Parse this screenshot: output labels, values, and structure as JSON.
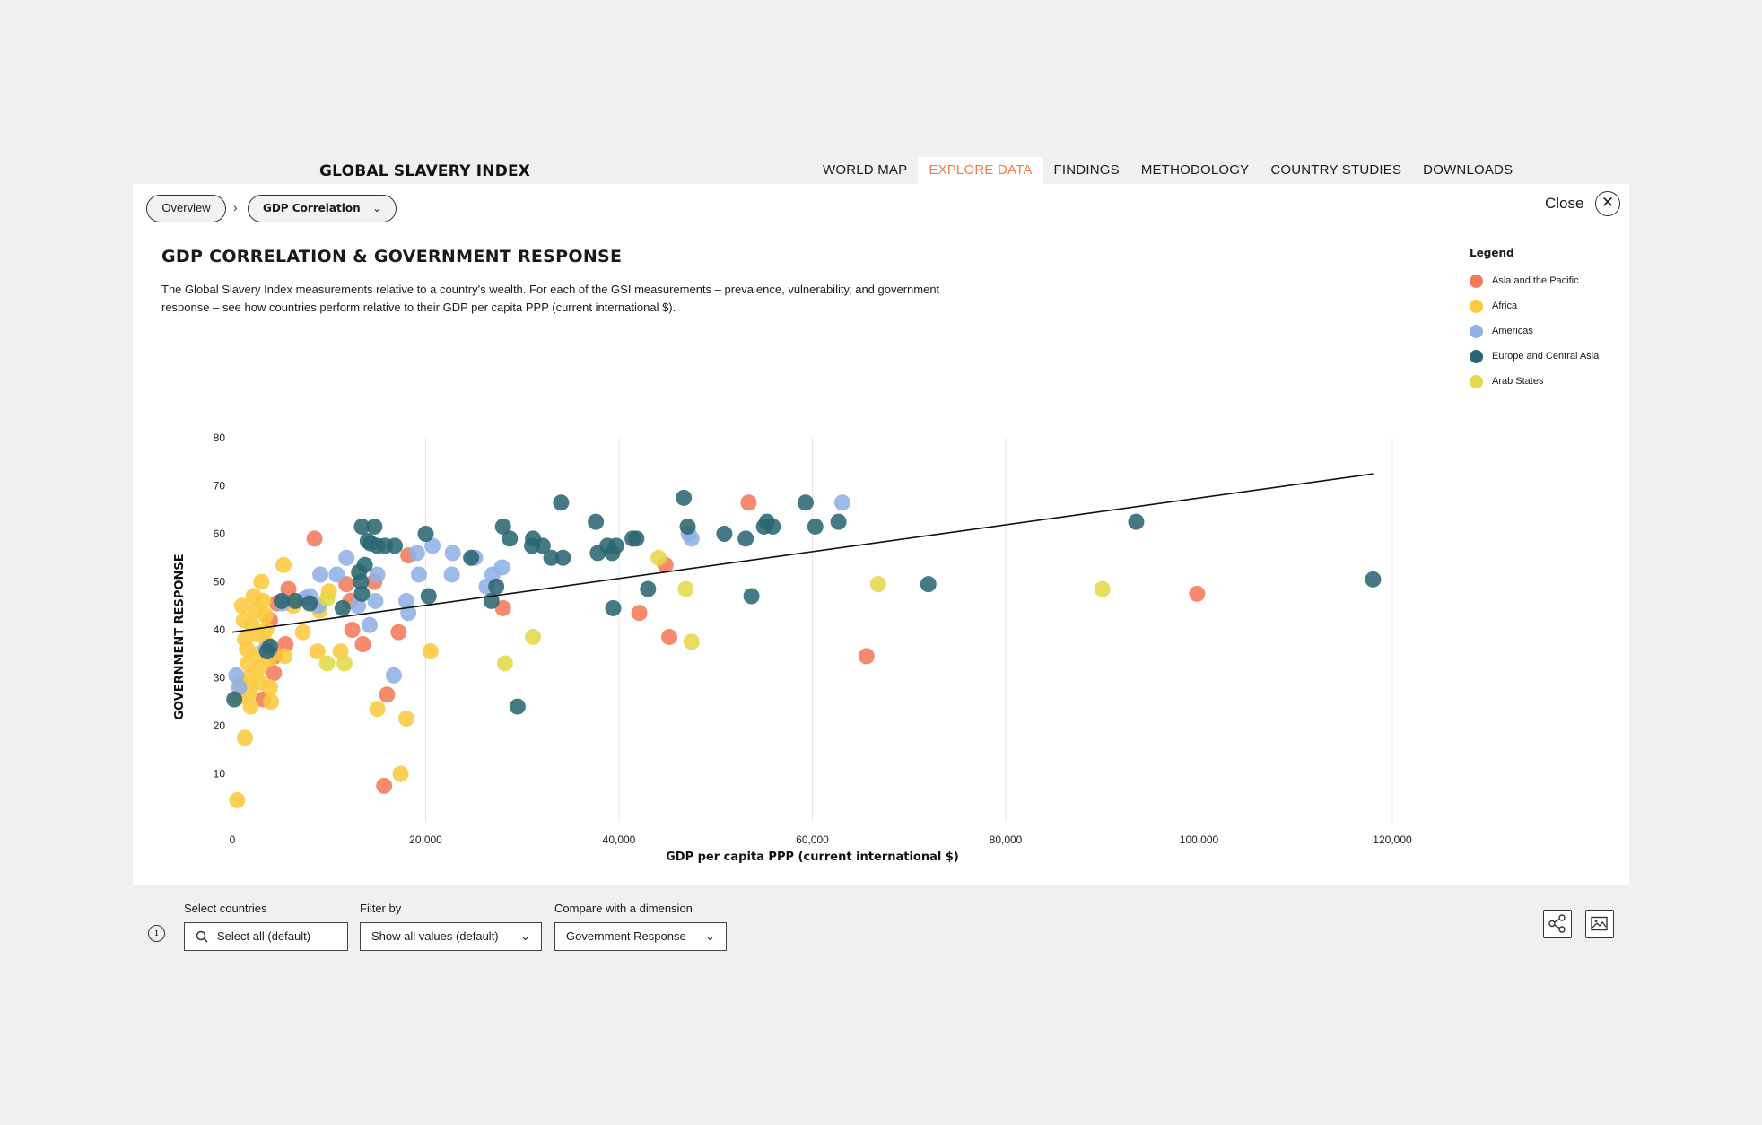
{
  "brand": "GLOBAL SLAVERY INDEX",
  "nav": [
    {
      "label": "WORLD MAP",
      "active": false
    },
    {
      "label": "EXPLORE DATA",
      "active": true
    },
    {
      "label": "FINDINGS",
      "active": false
    },
    {
      "label": "METHODOLOGY",
      "active": false
    },
    {
      "label": "COUNTRY STUDIES",
      "active": false
    },
    {
      "label": "DOWNLOADS",
      "active": false
    }
  ],
  "breadcrumb": {
    "overview": "Overview",
    "separator": "›",
    "current": "GDP Correlation"
  },
  "close_label": "Close",
  "title": "GDP CORRELATION & GOVERNMENT RESPONSE",
  "description": "The Global Slavery Index measurements relative to a country's wealth. For each of the GSI measurements – prevalence, vulnerability, and government response – see how countries perform relative to their GDP per capita PPP (current international $).",
  "legend": {
    "title": "Legend",
    "items": [
      {
        "label": "Asia and the Pacific",
        "color": "#f47a5b"
      },
      {
        "label": "Africa",
        "color": "#fbc93d"
      },
      {
        "label": "Americas",
        "color": "#8fb1e6"
      },
      {
        "label": "Europe and Central Asia",
        "color": "#2b6672"
      },
      {
        "label": "Arab States",
        "color": "#e4d84a"
      }
    ]
  },
  "chart_data": {
    "type": "scatter",
    "xlabel": "GDP per capita PPP (current international $)",
    "ylabel": "GOVERNMENT RESPONSE",
    "xlim": [
      0,
      120000
    ],
    "ylim": [
      0,
      80
    ],
    "xticks": [
      {
        "value": 0,
        "label": "0"
      },
      {
        "value": 20000,
        "label": "20,000"
      },
      {
        "value": 40000,
        "label": "40,000"
      },
      {
        "value": 60000,
        "label": "60,000"
      },
      {
        "value": 80000,
        "label": "80,000"
      },
      {
        "value": 100000,
        "label": "100,000"
      },
      {
        "value": 120000,
        "label": "120,000"
      }
    ],
    "yticks": [
      10,
      20,
      30,
      40,
      50,
      60,
      70,
      80
    ],
    "grid_x": true,
    "trendline": {
      "x": [
        0,
        118000
      ],
      "y": [
        39.5,
        72.5
      ]
    },
    "series": [
      {
        "name": "Asia and the Pacific",
        "color": "#f47a5b",
        "points": [
          [
            8500,
            59
          ],
          [
            5800,
            48.5
          ],
          [
            4600,
            45.5
          ],
          [
            5500,
            37
          ],
          [
            4400,
            34.5
          ],
          [
            4300,
            31
          ],
          [
            3200,
            25.5
          ],
          [
            11800,
            49.5
          ],
          [
            12200,
            46
          ],
          [
            12400,
            40
          ],
          [
            13500,
            37
          ],
          [
            14700,
            50
          ],
          [
            17200,
            39.5
          ],
          [
            18200,
            55.5
          ],
          [
            16000,
            26.5
          ],
          [
            15700,
            7.5
          ],
          [
            28000,
            44.5
          ],
          [
            44800,
            53.5
          ],
          [
            42100,
            43.5
          ],
          [
            45200,
            38.5
          ],
          [
            53400,
            66.5
          ],
          [
            65600,
            34.5
          ],
          [
            99800,
            47.5
          ],
          [
            3900,
            42
          ]
        ]
      },
      {
        "name": "Africa",
        "color": "#fbc93d",
        "points": [
          [
            1000,
            45
          ],
          [
            1200,
            42
          ],
          [
            1300,
            38
          ],
          [
            1500,
            36
          ],
          [
            1600,
            33
          ],
          [
            1700,
            30
          ],
          [
            1800,
            27
          ],
          [
            1900,
            24
          ],
          [
            2000,
            41
          ],
          [
            2200,
            47
          ],
          [
            2400,
            44
          ],
          [
            2600,
            39
          ],
          [
            2700,
            35
          ],
          [
            2800,
            32
          ],
          [
            2900,
            29
          ],
          [
            3000,
            50
          ],
          [
            3200,
            46
          ],
          [
            3400,
            43
          ],
          [
            3500,
            40
          ],
          [
            3600,
            37
          ],
          [
            3800,
            34
          ],
          [
            3900,
            28
          ],
          [
            4000,
            25
          ],
          [
            1300,
            17.5
          ],
          [
            500,
            4.5
          ],
          [
            800,
            29
          ],
          [
            5300,
            53.5
          ],
          [
            5400,
            34.5
          ],
          [
            7300,
            39.5
          ],
          [
            8800,
            35.5
          ],
          [
            9000,
            44
          ],
          [
            10000,
            48
          ],
          [
            11200,
            35.5
          ],
          [
            15000,
            23.5
          ],
          [
            17400,
            10
          ],
          [
            18000,
            21.5
          ],
          [
            20500,
            35.5
          ],
          [
            6300,
            45
          ],
          [
            700,
            26
          ]
        ]
      },
      {
        "name": "Americas",
        "color": "#8fb1e6",
        "points": [
          [
            400,
            30.5
          ],
          [
            700,
            28
          ],
          [
            3500,
            36
          ],
          [
            5200,
            45.5
          ],
          [
            7500,
            46.5
          ],
          [
            8000,
            47
          ],
          [
            9100,
            51.5
          ],
          [
            10800,
            51.5
          ],
          [
            11800,
            55
          ],
          [
            13000,
            45
          ],
          [
            14200,
            41
          ],
          [
            14800,
            46
          ],
          [
            15000,
            51.5
          ],
          [
            16700,
            30.5
          ],
          [
            18000,
            46
          ],
          [
            18200,
            43.5
          ],
          [
            19100,
            56
          ],
          [
            19300,
            51.5
          ],
          [
            20700,
            57.5
          ],
          [
            22700,
            51.5
          ],
          [
            22800,
            56
          ],
          [
            25100,
            55
          ],
          [
            26300,
            49
          ],
          [
            26900,
            51.5
          ],
          [
            27900,
            53
          ],
          [
            47500,
            59
          ],
          [
            47200,
            60
          ],
          [
            63100,
            66.5
          ],
          [
            8900,
            45
          ]
        ]
      },
      {
        "name": "Europe and Central Asia",
        "color": "#2b6672",
        "points": [
          [
            13400,
            61.5
          ],
          [
            14000,
            58.5
          ],
          [
            14300,
            58
          ],
          [
            14700,
            61.5
          ],
          [
            15000,
            57.5
          ],
          [
            15800,
            57.5
          ],
          [
            16800,
            57.5
          ],
          [
            13100,
            52
          ],
          [
            13300,
            50
          ],
          [
            13400,
            47.5
          ],
          [
            13700,
            53.5
          ],
          [
            11400,
            44.5
          ],
          [
            5100,
            46
          ],
          [
            8000,
            45.5
          ],
          [
            3600,
            35.5
          ],
          [
            3900,
            36.5
          ],
          [
            6500,
            46
          ],
          [
            200,
            25.5
          ],
          [
            20000,
            60
          ],
          [
            20300,
            47
          ],
          [
            24700,
            55
          ],
          [
            26800,
            46
          ],
          [
            27300,
            49
          ],
          [
            28000,
            61.5
          ],
          [
            28700,
            59
          ],
          [
            31000,
            57.5
          ],
          [
            31100,
            59
          ],
          [
            32100,
            57.5
          ],
          [
            33000,
            55
          ],
          [
            34000,
            66.5
          ],
          [
            34200,
            55
          ],
          [
            37600,
            62.5
          ],
          [
            37800,
            56
          ],
          [
            38800,
            57.5
          ],
          [
            39300,
            56
          ],
          [
            39700,
            57.5
          ],
          [
            41400,
            59
          ],
          [
            41800,
            59
          ],
          [
            39400,
            44.5
          ],
          [
            43000,
            48.5
          ],
          [
            46700,
            67.5
          ],
          [
            47100,
            61.5
          ],
          [
            29500,
            24
          ],
          [
            50900,
            60
          ],
          [
            53100,
            59
          ],
          [
            53700,
            47
          ],
          [
            55000,
            61.5
          ],
          [
            55300,
            62.5
          ],
          [
            55900,
            61.5
          ],
          [
            59300,
            66.5
          ],
          [
            60300,
            61.5
          ],
          [
            62700,
            62.5
          ],
          [
            72000,
            49.5
          ],
          [
            93500,
            62.5
          ],
          [
            118000,
            50.5
          ]
        ]
      },
      {
        "name": "Arab States",
        "color": "#e4d84a",
        "points": [
          [
            9800,
            46.5
          ],
          [
            9800,
            33
          ],
          [
            11600,
            33
          ],
          [
            28200,
            33
          ],
          [
            31100,
            38.5
          ],
          [
            44100,
            55
          ],
          [
            46900,
            48.5
          ],
          [
            47500,
            37.5
          ],
          [
            66800,
            49.5
          ],
          [
            90000,
            48.5
          ]
        ]
      }
    ]
  },
  "controls": {
    "select_countries": {
      "label": "Select countries",
      "value": "Select all (default)"
    },
    "filter_by": {
      "label": "Filter by",
      "value": "Show all values (default)"
    },
    "compare": {
      "label": "Compare with a dimension",
      "value": "Government Response"
    }
  },
  "icons": {
    "share": "share-icon",
    "image": "image-download-icon",
    "info": "info-icon",
    "close": "close-icon",
    "search": "search-icon"
  }
}
